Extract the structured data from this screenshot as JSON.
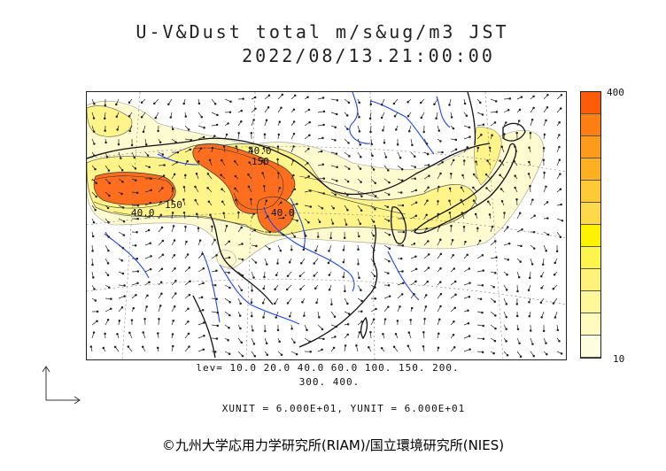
{
  "header": {
    "title_line1": "U-V&Dust total m/s&ug/m3 JST",
    "title_line2": "2022/08/13.21:00:00"
  },
  "colorbar": {
    "max_label": "400",
    "min_label": "10",
    "colors": [
      "#fffde0",
      "#fffbbf",
      "#fff79a",
      "#fff27a",
      "#fff34d",
      "#fff200",
      "#ffd94a",
      "#ffca36",
      "#ffb020",
      "#ff9a1a",
      "#ff7e12",
      "#ff5c0a"
    ]
  },
  "legend": {
    "levels_line1": "lev= 10.0 20.0 40.0 60.0 100. 150. 200.",
    "levels_line2": "300. 400."
  },
  "units_text": "XUNIT = 6.000E+01, YUNIT = 6.000E+01",
  "credit": "©九州大学応用力学研究所(RIAM)/国立環境研究所(NIES)",
  "contour_labels": [
    "40.0",
    "150",
    "40.0",
    "150",
    "40.0"
  ],
  "colors": {
    "dust_low": "#fff8c2",
    "dust_mid": "#fff07a",
    "dust_high": "#ff6a1a",
    "dust_peak": "#ff4d14",
    "river": "#1a44ff",
    "coast": "#111111",
    "grid": "#666666"
  }
}
